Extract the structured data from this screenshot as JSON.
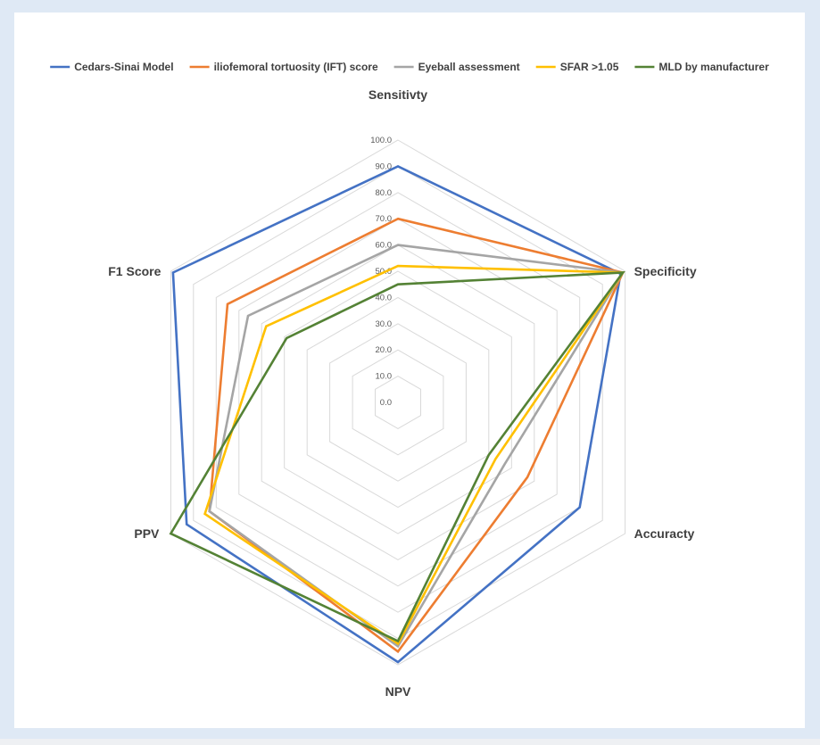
{
  "chart_data": {
    "type": "radar",
    "axes": [
      "Sensitivty",
      "Specificity",
      "Accuracty",
      "NPV",
      "PPV",
      "F1 Score"
    ],
    "rlim": [
      0,
      100
    ],
    "ticks": [
      "0.0",
      "10.0",
      "20.0",
      "30.0",
      "40.0",
      "50.0",
      "60.0",
      "70.0",
      "80.0",
      "90.0",
      "100.0"
    ],
    "grid": true,
    "legend_position": "top",
    "series": [
      {
        "name": "Cedars-Sinai Model",
        "color": "#4472c4",
        "values": [
          90,
          98,
          80,
          99,
          93,
          99
        ]
      },
      {
        "name": "iliofemoral tortuosity (IFT) score",
        "color": "#ed7d31",
        "values": [
          70,
          99,
          57,
          95,
          83,
          75
        ]
      },
      {
        "name": "Eyeball assessment",
        "color": "#a5a5a5",
        "values": [
          60,
          99,
          47,
          93,
          83,
          66
        ]
      },
      {
        "name": "SFAR >1.05",
        "color": "#ffc000",
        "values": [
          52,
          99,
          43,
          92,
          85,
          58
        ]
      },
      {
        "name": "MLD by manufacturer",
        "color": "#548235",
        "values": [
          45,
          99,
          40,
          91,
          100,
          49
        ]
      }
    ]
  }
}
